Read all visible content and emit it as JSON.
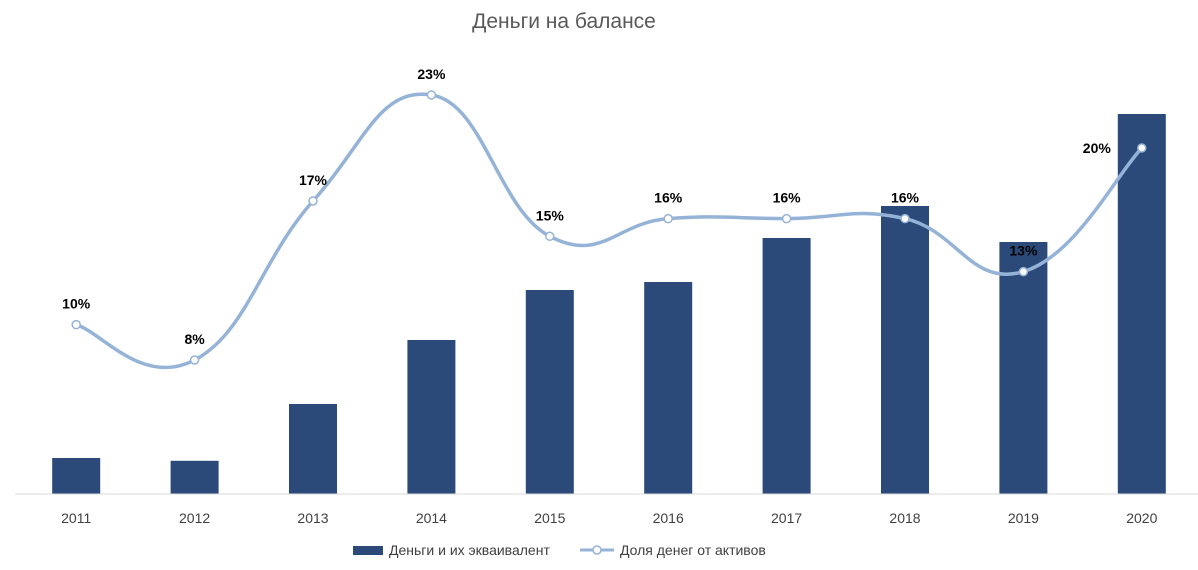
{
  "chart_data": {
    "type": "bar",
    "title": "Деньги на балансе",
    "categories": [
      "2011",
      "2012",
      "2013",
      "2014",
      "2015",
      "2016",
      "2017",
      "2018",
      "2019",
      "2020"
    ],
    "series": [
      {
        "name": "Деньги и их экваивалент",
        "type": "bar",
        "color": "#2B4A7A",
        "values": [
          9,
          8.3,
          22.5,
          38.5,
          51,
          53,
          64,
          72,
          63,
          95
        ]
      },
      {
        "name": "Доля денег от активов",
        "type": "line",
        "color": "#95B3D7",
        "values": [
          10,
          8,
          17,
          23,
          15,
          16,
          16,
          16,
          13,
          20
        ],
        "labels": [
          "10%",
          "8%",
          "17%",
          "23%",
          "15%",
          "16%",
          "16%",
          "16%",
          "13%",
          "20%"
        ]
      }
    ],
    "legend_position": "bottom",
    "grid": false
  }
}
